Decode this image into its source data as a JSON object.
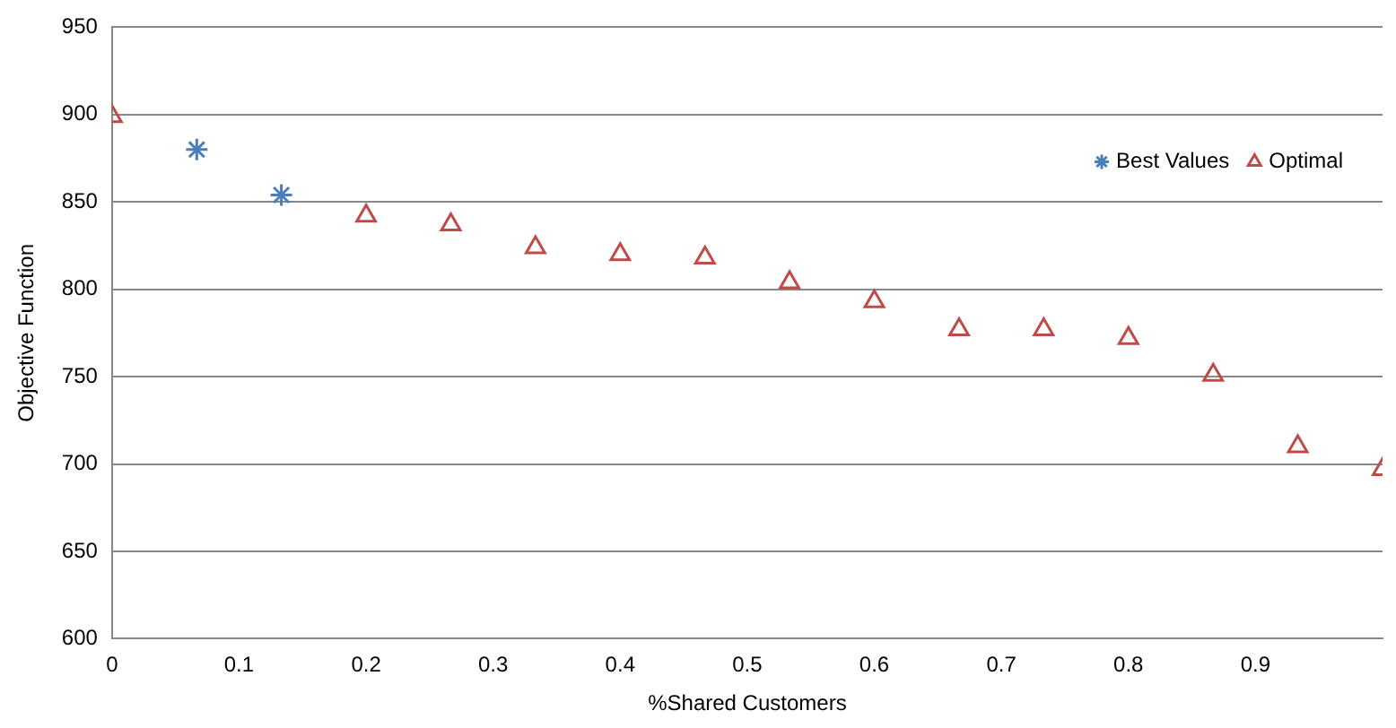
{
  "chart_data": {
    "type": "scatter",
    "xlabel": "%Shared Customers",
    "ylabel": "Objective Function",
    "xlim": [
      0,
      1
    ],
    "xticks": [
      0,
      0.1,
      0.2,
      0.3,
      0.4,
      0.5,
      0.6,
      0.7,
      0.8,
      0.9
    ],
    "ylim": [
      600,
      950
    ],
    "yticks": [
      600,
      650,
      700,
      750,
      800,
      850,
      900,
      950
    ],
    "grid": "y",
    "legend": "top right",
    "series": [
      {
        "name": "Best Values",
        "color": "#4a7ebb",
        "marker": "cross",
        "x": [
          0.0667,
          0.1333
        ],
        "values": [
          880,
          854
        ]
      },
      {
        "name": "Optimal",
        "color": "#be4b48",
        "marker": "triangle",
        "x": [
          0,
          0.2,
          0.2667,
          0.3333,
          0.4,
          0.4667,
          0.5333,
          0.6,
          0.6667,
          0.7333,
          0.8,
          0.8667,
          0.9333,
          1.0
        ],
        "values": [
          899,
          842,
          837,
          824,
          820,
          818,
          804,
          793,
          777,
          777,
          772,
          751,
          710,
          697
        ]
      }
    ]
  }
}
